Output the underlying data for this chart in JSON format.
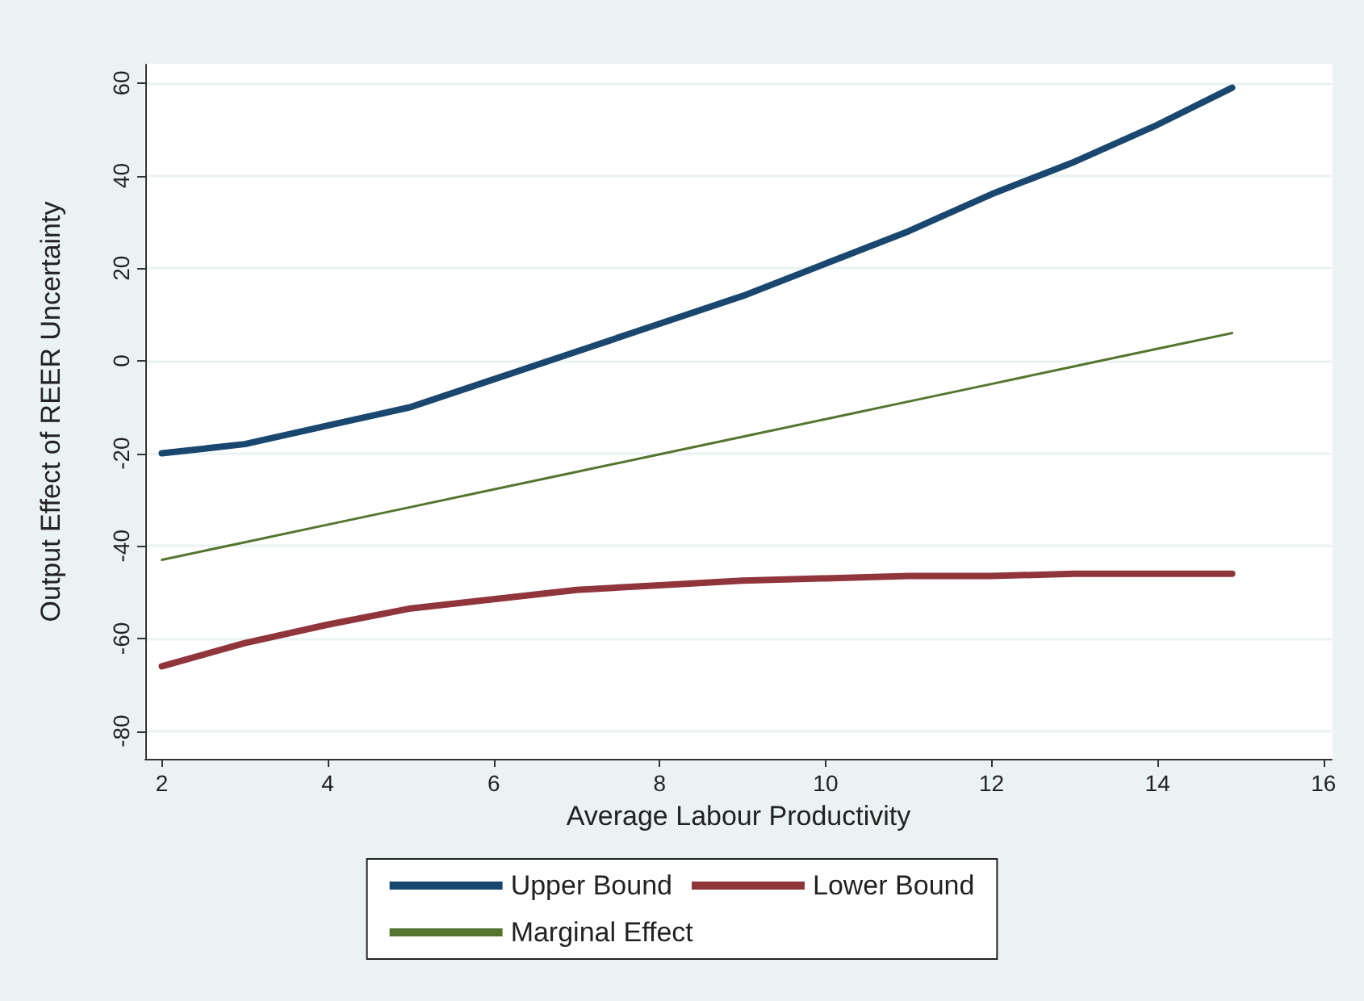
{
  "chart_data": {
    "type": "line",
    "xlabel": "Average Labour Productivity",
    "ylabel": "Output Effect of REER Uncertainty",
    "x": [
      2,
      3,
      4,
      5,
      6,
      7,
      8,
      9,
      10,
      11,
      12,
      13,
      14,
      14.9
    ],
    "series": [
      {
        "name": "Upper Bound",
        "color": "#1a476f",
        "values": [
          -20,
          -18,
          -14,
          -10,
          -4,
          2,
          8,
          14,
          21,
          28,
          36,
          43,
          51,
          59
        ]
      },
      {
        "name": "Lower Bound",
        "color": "#90353b",
        "values": [
          -66,
          -61,
          -57,
          -53.5,
          -51.5,
          -49.5,
          -48.5,
          -47.5,
          -47,
          -46.5,
          -46.5,
          -46,
          -46,
          -46
        ]
      },
      {
        "name": "Marginal Effect",
        "color": "#55752f",
        "values": [
          -43,
          -39.2,
          -35.4,
          -31.6,
          -27.8,
          -24,
          -20.2,
          -16.4,
          -12.6,
          -8.8,
          -5,
          -1.2,
          2.6,
          6
        ]
      }
    ],
    "xlim": [
      1.8,
      16.1
    ],
    "xticks": [
      2,
      4,
      6,
      8,
      10,
      12,
      14,
      16
    ],
    "ylim": [
      -86,
      64
    ],
    "yticks": [
      -80,
      -60,
      -40,
      -20,
      0,
      20,
      40,
      60
    ],
    "grid": "y",
    "legend": "bottom",
    "marker": "none",
    "line_style": "solid"
  }
}
